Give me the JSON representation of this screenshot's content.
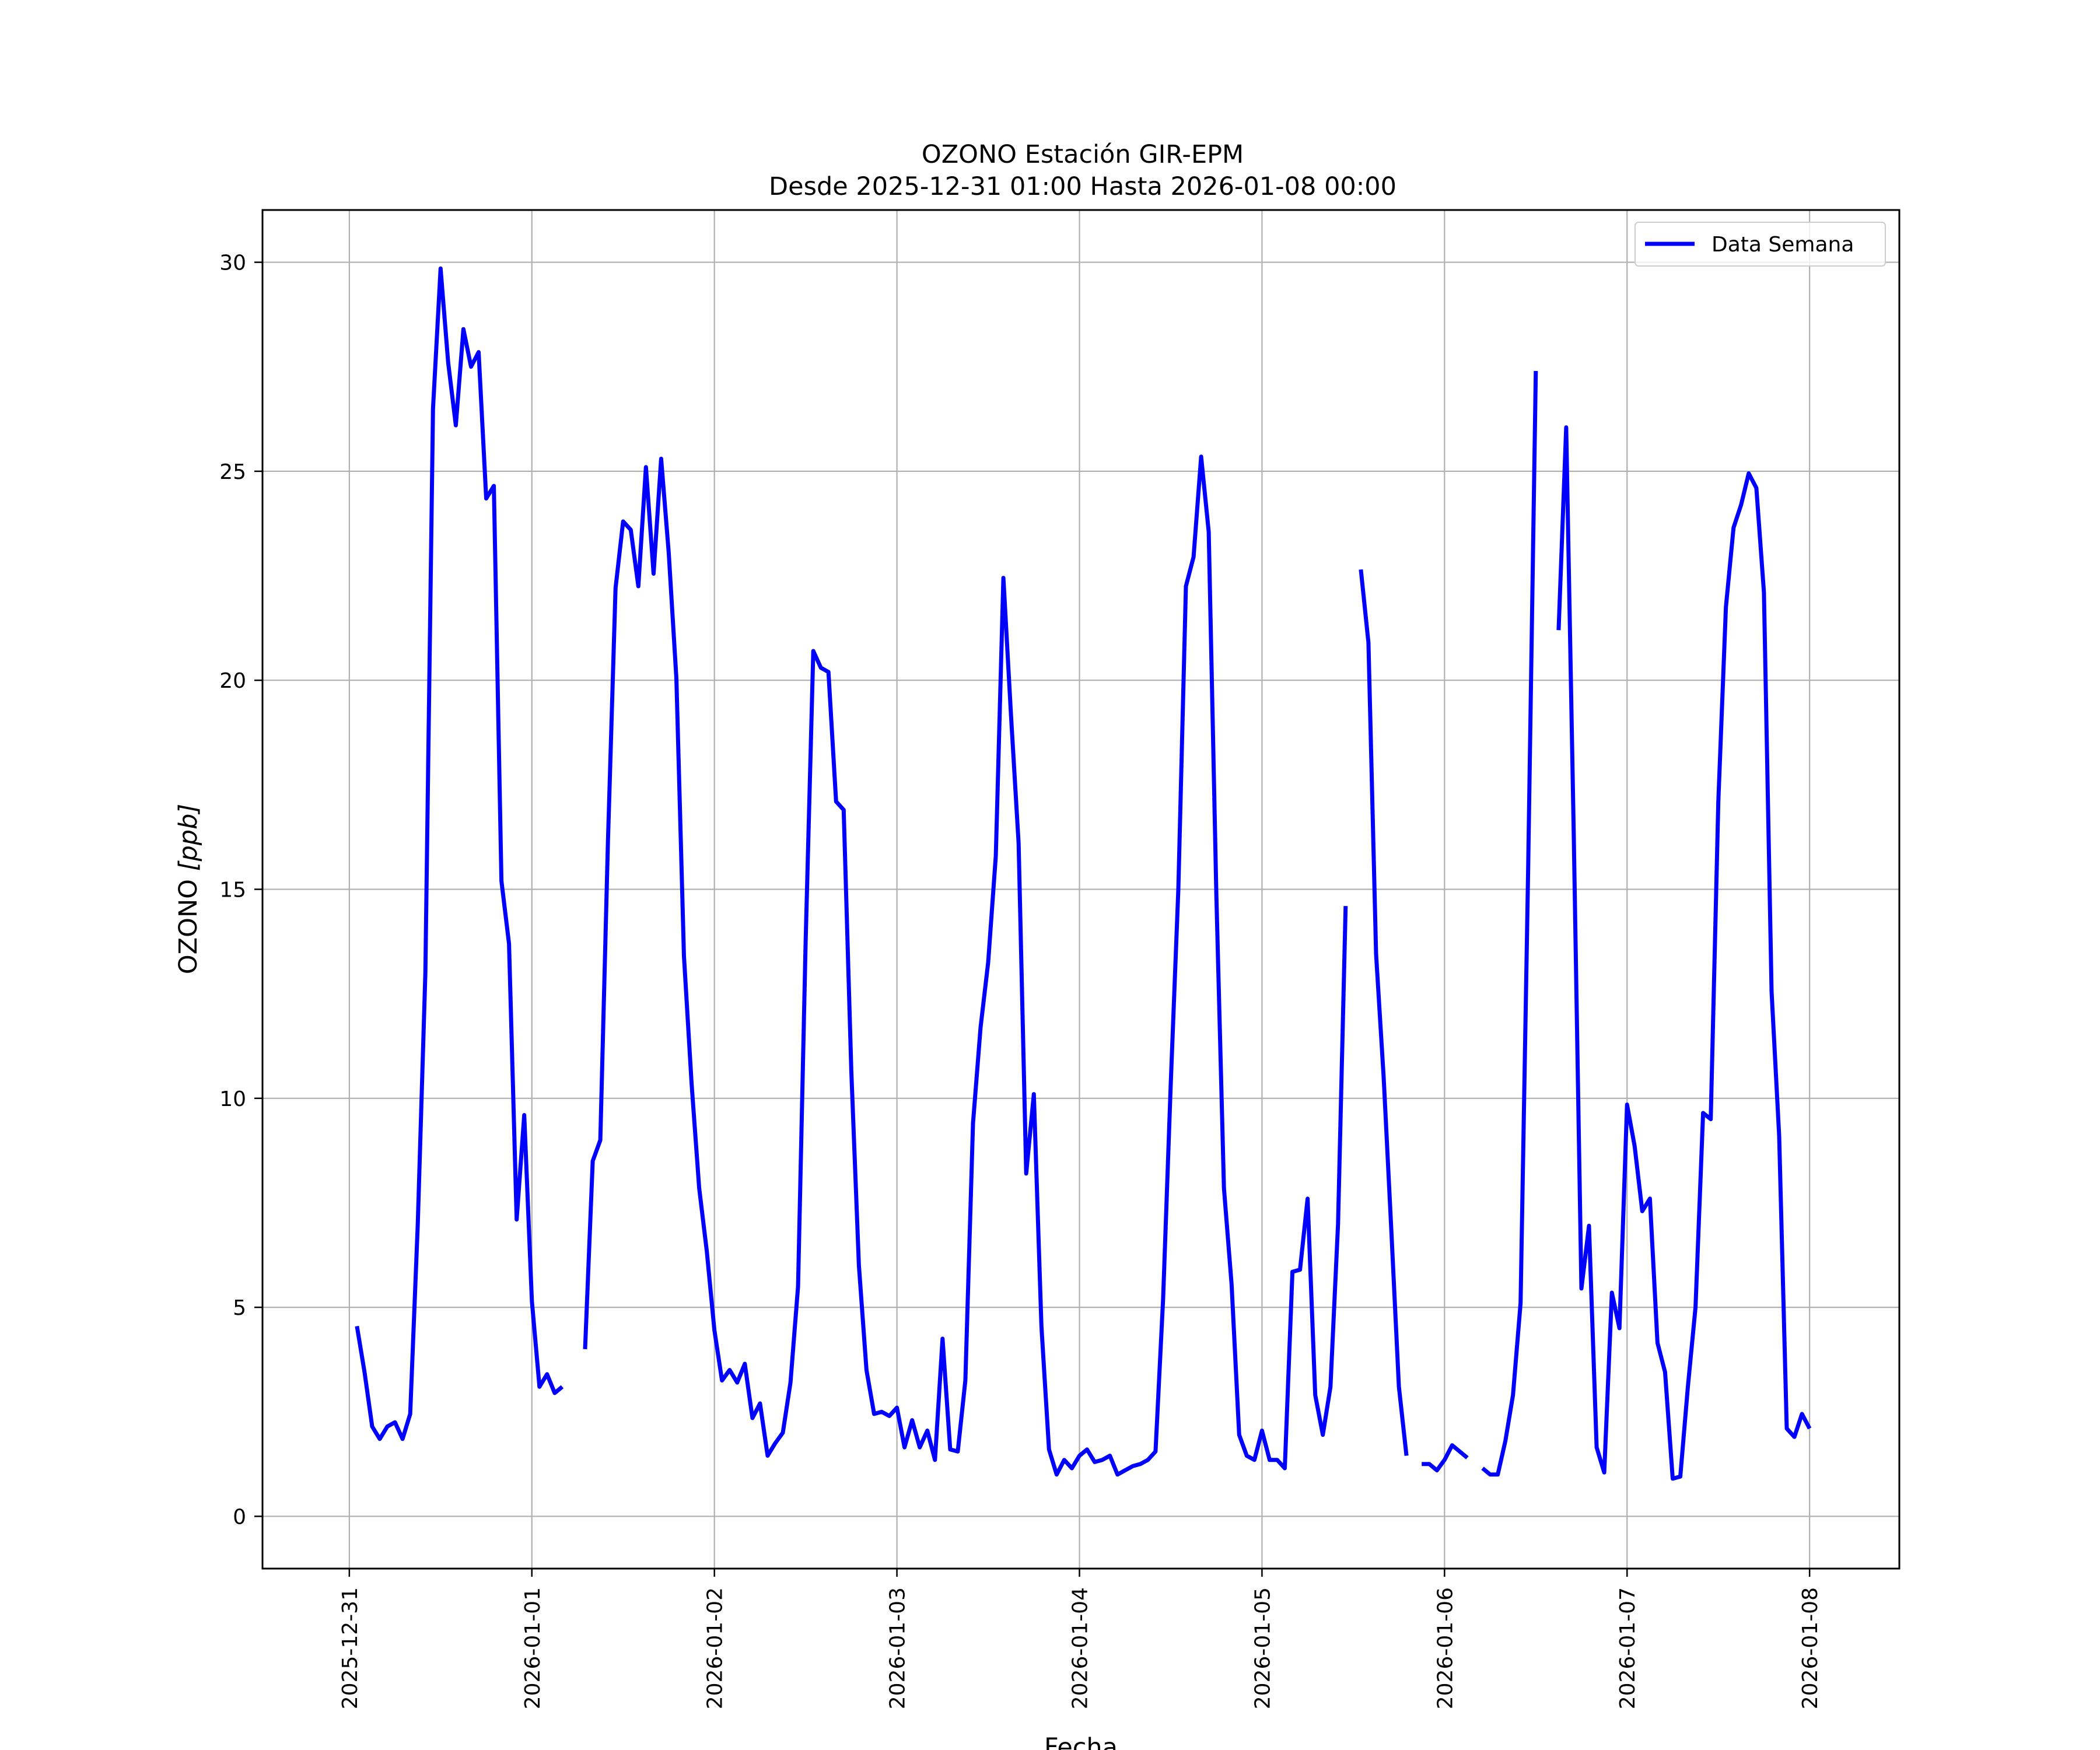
{
  "chart_data": {
    "type": "line",
    "title": "OZONO Estación GIR-EPM",
    "subtitle": "Desde 2025-12-31 01:00 Hasta 2026-01-08 00:00",
    "xlabel": "Fecha",
    "ylabel": "OZONO [ppb]",
    "ylabel_plain": "OZONO ",
    "ylabel_math": "[ppb]",
    "xlim": [
      "2025-12-30 12:35",
      "2026-01-08 11:48"
    ],
    "ylim": [
      -1.25,
      31.25
    ],
    "grid": true,
    "legend_position": "top-right",
    "x_ticks": [
      "2025-12-31",
      "2026-01-01",
      "2026-01-02",
      "2026-01-03",
      "2026-01-04",
      "2026-01-05",
      "2026-01-06",
      "2026-01-07",
      "2026-01-08"
    ],
    "y_ticks": [
      0,
      5,
      10,
      15,
      20,
      25,
      30
    ],
    "series": [
      {
        "name": "Data Semana",
        "color": "#0000ff",
        "x_start": "2025-12-31 01:00",
        "x_step": "1h",
        "values": [
          4.55,
          3.45,
          2.15,
          1.85,
          2.15,
          2.25,
          1.85,
          2.45,
          7.0,
          13.0,
          26.5,
          29.85,
          27.6,
          26.1,
          28.4,
          27.5,
          27.85,
          24.35,
          24.65,
          15.2,
          13.7,
          7.1,
          9.6,
          5.15,
          3.1,
          3.4,
          2.95,
          3.1,
          null,
          null,
          4.0,
          8.5,
          9.0,
          16.1,
          22.2,
          23.8,
          23.6,
          22.25,
          25.1,
          22.55,
          25.3,
          23.05,
          20.05,
          13.4,
          10.35,
          7.85,
          6.35,
          4.45,
          3.25,
          3.5,
          3.2,
          3.65,
          2.35,
          2.7,
          1.45,
          1.75,
          2.0,
          3.2,
          5.5,
          13.75,
          20.7,
          20.3,
          20.2,
          17.1,
          16.9,
          10.65,
          6.0,
          3.5,
          2.45,
          2.5,
          2.4,
          2.6,
          1.65,
          2.3,
          1.65,
          2.05,
          1.35,
          4.25,
          1.6,
          1.55,
          3.25,
          9.4,
          11.7,
          13.25,
          15.8,
          22.45,
          19.15,
          16.1,
          8.2,
          10.1,
          4.55,
          1.6,
          1.0,
          1.35,
          1.15,
          1.45,
          1.6,
          1.3,
          1.35,
          1.45,
          1.0,
          1.1,
          1.2,
          1.25,
          1.35,
          1.55,
          5.2,
          10.35,
          15.0,
          22.25,
          22.95,
          25.35,
          23.55,
          14.85,
          7.85,
          5.55,
          1.95,
          1.45,
          1.35,
          2.05,
          1.35,
          1.35,
          1.15,
          5.85,
          5.9,
          7.6,
          2.9,
          1.95,
          3.1,
          7.0,
          14.6,
          null,
          22.65,
          20.9,
          13.45,
          10.5,
          6.85,
          3.1,
          1.45,
          null,
          1.25,
          1.25,
          1.1,
          1.35,
          1.7,
          1.55,
          1.4,
          null,
          1.15,
          1.0,
          1.0,
          1.8,
          2.9,
          5.1,
          15.5,
          27.4,
          null,
          null,
          21.2,
          26.05,
          16.2,
          5.45,
          6.95,
          1.65,
          1.05,
          5.35,
          4.5,
          9.85,
          8.85,
          7.3,
          7.6,
          4.15,
          3.45,
          0.9,
          0.95,
          3.1,
          5.0,
          9.65,
          9.5,
          17.1,
          21.75,
          23.65,
          24.2,
          24.95,
          24.6,
          22.1,
          12.55,
          9.1,
          2.1,
          1.9,
          2.45,
          2.1
        ]
      }
    ]
  }
}
